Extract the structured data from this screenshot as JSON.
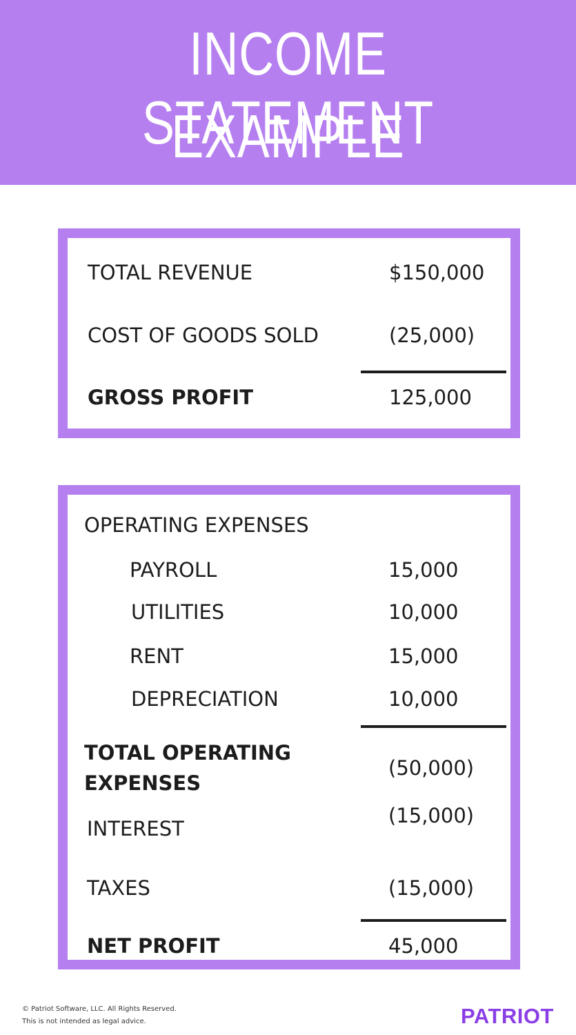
{
  "header": {
    "title_line_1": "INCOME STATEMENT",
    "title_line_2": "EXAMPLE",
    "background": "#b57ff0"
  },
  "gross_section": {
    "rows": [
      {
        "label": "TOTAL REVENUE",
        "value": "$150,000"
      },
      {
        "label": "COST OF GOODS SOLD",
        "value": "(25,000)"
      },
      {
        "label": "GROSS PROFIT",
        "value": "125,000"
      }
    ]
  },
  "operating_section": {
    "heading": "OPERATING EXPENSES",
    "items": [
      {
        "label": "PAYROLL",
        "value": "15,000"
      },
      {
        "label": "UTILITIES",
        "value": "10,000"
      },
      {
        "label": "RENT",
        "value": "15,000"
      },
      {
        "label": "DEPRECIATION",
        "value": "10,000"
      }
    ],
    "total_label_line_1": "TOTAL OPERATING",
    "total_label_line_2": "EXPENSES",
    "total_value": "(50,000)",
    "interest": {
      "label": "INTEREST",
      "value": "(15,000)"
    },
    "taxes": {
      "label": "TAXES",
      "value": "(15,000)"
    },
    "net_profit": {
      "label": "NET PROFIT",
      "value": "45,000"
    }
  },
  "footer": {
    "copyright": "© Patriot Software, LLC. All Rights Reserved.",
    "disclaimer": "This is not intended as legal advice.",
    "brand": "PATRIOT",
    "brand_color": "#8a3fe6"
  }
}
